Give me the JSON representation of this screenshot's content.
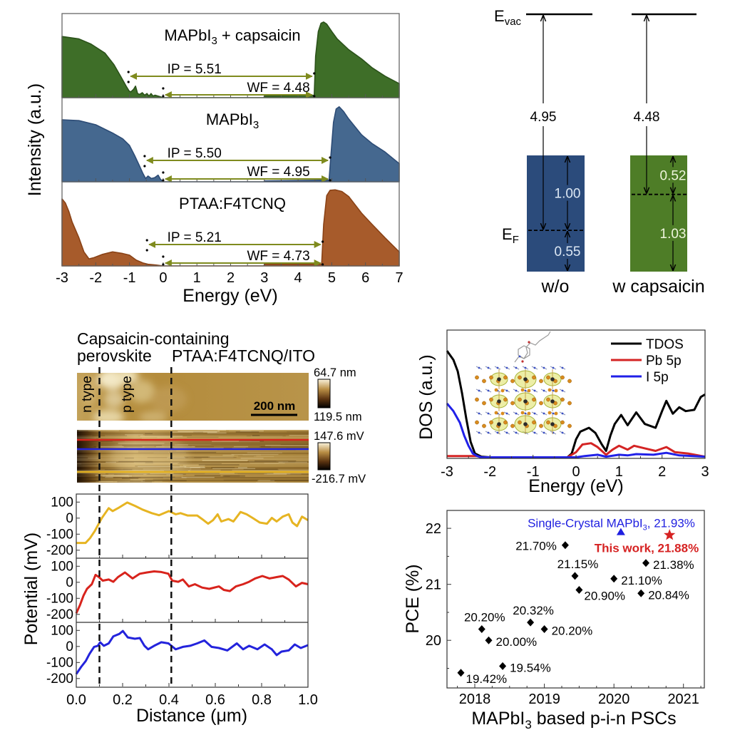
{
  "chart_data": [
    {
      "id": "ups-spectra",
      "type": "area",
      "title": "",
      "xlabel": "Energy (eV)",
      "ylabel": "Intensity (a.u.)",
      "xlim": [
        -3,
        7
      ],
      "ylim": [
        0,
        1
      ],
      "xticks": [
        "-3",
        "-2",
        "-1",
        "0",
        "1",
        "2",
        "3",
        "4",
        "5",
        "6",
        "7"
      ],
      "grid": false,
      "annotation_color": "#7f8b1e",
      "panels": [
        {
          "label": {
            "main": "MAPbI",
            "sub": "3",
            "suffix": " + capsaicin"
          },
          "fill": "#3e6e28",
          "edge": "#2b521a",
          "x": [
            -3,
            -2.5,
            -2.15,
            -1.73,
            -1.46,
            -1.25,
            -1.1,
            -1.01,
            -0.96,
            -0.88,
            -0.82,
            -0.76,
            -0.7,
            -0.62,
            -0.55,
            -0.48,
            -0.42,
            -0.36,
            -0.3,
            -0.24,
            -0.16,
            -0.08,
            0,
            2.99,
            3.0,
            4.48,
            4.52,
            4.6,
            4.68,
            4.76,
            4.85,
            5.0,
            5.16,
            5.5,
            5.88,
            6.2,
            6.58,
            7
          ],
          "y": [
            0.74,
            0.71,
            0.65,
            0.54,
            0.4,
            0.25,
            0.14,
            0.08,
            0.07,
            0.1,
            0.14,
            0.05,
            0.04,
            0.06,
            0.03,
            0.05,
            0.02,
            0.05,
            0.02,
            0.03,
            0.02,
            0.01,
            0,
            0,
            0.02,
            0.03,
            0.5,
            0.8,
            0.9,
            0.915,
            0.89,
            0.8,
            0.71,
            0.58,
            0.47,
            0.36,
            0.26,
            0.17
          ],
          "ip": {
            "text": "IP = 5.51",
            "value": 5.51,
            "from": -1.03,
            "to": 4.48
          },
          "wf": {
            "text": "WF = 4.48",
            "value": 4.48,
            "from": 0,
            "to": 4.48
          }
        },
        {
          "label": {
            "main": "MAPbI",
            "sub": "3",
            "suffix": ""
          },
          "fill": "#45688f",
          "edge": "#2d4c76",
          "x": [
            -3,
            -2.5,
            -2,
            -1.5,
            -1.2,
            -1,
            -0.85,
            -0.7,
            -0.6,
            -0.52,
            -0.45,
            -0.35,
            -0.25,
            -0.15,
            -0.08,
            0,
            2.99,
            3.0,
            4.92,
            4.97,
            5.05,
            5.13,
            5.22,
            5.35,
            5.5,
            5.88,
            6.2,
            6.58,
            7
          ],
          "y": [
            0.75,
            0.74,
            0.69,
            0.59,
            0.52,
            0.44,
            0.32,
            0.19,
            0.1,
            0.04,
            0.07,
            0.04,
            0.05,
            0.08,
            0.03,
            0,
            0,
            0.01,
            0.02,
            0.3,
            0.72,
            0.88,
            0.907,
            0.85,
            0.76,
            0.57,
            0.46,
            0.36,
            0.22
          ],
          "ip": {
            "text": "IP = 5.50",
            "value": 5.5,
            "from": -0.55,
            "to": 4.95
          },
          "wf": {
            "text": "WF = 4.95",
            "value": 4.95,
            "from": 0,
            "to": 4.95
          }
        },
        {
          "label": {
            "main": "PTAA:F4TCNQ",
            "sub": "",
            "suffix": ""
          },
          "fill": "#a75b2b",
          "edge": "#8a4216",
          "x": [
            -3,
            -2.9,
            -2.8,
            -2.7,
            -2.5,
            -2.35,
            -2.2,
            -2.05,
            -1.8,
            -1.5,
            -1.2,
            -1,
            -0.8,
            -0.6,
            -0.45,
            -0.2,
            0,
            2.99,
            3.0,
            4.7,
            4.76,
            4.85,
            4.95,
            5.1,
            5.3,
            5.5,
            5.88,
            6.2,
            6.58,
            7
          ],
          "y": [
            0.81,
            0.76,
            0.66,
            0.53,
            0.34,
            0.17,
            0.085,
            0.1,
            0.14,
            0.17,
            0.15,
            0.13,
            0.07,
            0.035,
            0.02,
            0.01,
            0,
            0,
            0.02,
            0.02,
            0.5,
            0.85,
            0.915,
            0.92,
            0.9,
            0.84,
            0.64,
            0.5,
            0.34,
            0.17
          ],
          "ip": {
            "text": "IP = 5.21",
            "value": 5.21,
            "from": -0.48,
            "to": 4.73
          },
          "wf": {
            "text": "WF = 4.73",
            "value": 4.73,
            "from": 0,
            "to": 4.73
          }
        }
      ]
    },
    {
      "id": "energy-level-diagram",
      "type": "diagram",
      "evac_label": {
        "main": "E",
        "sub": "vac"
      },
      "ef_label": {
        "main": "E",
        "sub": "F"
      },
      "columns": [
        {
          "label": "w/o",
          "fill": "#2b4b7b",
          "text_color": "#dce7f3",
          "work_function": {
            "text": "4.95",
            "value": 4.95
          },
          "upper": {
            "text": "1.00",
            "value": 1.0
          },
          "lower": {
            "text": "0.55",
            "value": 0.55
          }
        },
        {
          "label": "w capsaicin",
          "fill": "#4e7d27",
          "text_color": "#eef5dc",
          "work_function": {
            "text": "4.48",
            "value": 4.48
          },
          "upper": {
            "text": "0.52",
            "value": 0.52
          },
          "lower": {
            "text": "1.03",
            "value": 1.03
          }
        }
      ]
    },
    {
      "id": "kpfm-line-profiles",
      "type": "line",
      "title": "",
      "xlabel": "Distance (μm)",
      "ylabel": "Potential (mV)",
      "xlim": [
        0,
        1
      ],
      "ylim": [
        -250,
        150
      ],
      "xticks": [
        "0.0",
        "0.2",
        "0.4",
        "0.6",
        "0.8",
        "1.0"
      ],
      "yticks": [
        "100",
        "0",
        "-100",
        "-200"
      ],
      "grid": false,
      "boundaries": [
        0.1,
        0.41
      ],
      "series": [
        {
          "key": "yellow",
          "color": "#e6b422",
          "x": [
            0,
            0.04,
            0.06,
            0.08,
            0.1,
            0.11,
            0.14,
            0.157,
            0.185,
            0.22,
            0.255,
            0.286,
            0.326,
            0.357,
            0.4,
            0.429,
            0.45,
            0.48,
            0.522,
            0.543,
            0.569,
            0.59,
            0.61,
            0.626,
            0.657,
            0.678,
            0.709,
            0.735,
            0.761,
            0.792,
            0.823,
            0.844,
            0.865,
            0.891,
            0.917,
            0.933,
            0.953,
            0.974,
            1.0
          ],
          "y": [
            -155,
            -155,
            -124,
            -80,
            -27,
            0,
            62,
            44,
            66,
            97,
            75,
            53,
            31,
            18,
            44,
            24,
            31,
            16,
            16,
            -6,
            -35,
            -13,
            24,
            -21,
            -6,
            -21,
            38,
            24,
            1,
            -28,
            -35,
            1,
            -21,
            9,
            24,
            -28,
            -50,
            9,
            -13
          ]
        },
        {
          "key": "red",
          "color": "#d8231c",
          "x": [
            0,
            0.016,
            0.031,
            0.046,
            0.067,
            0.083,
            0.098,
            0.114,
            0.14,
            0.16,
            0.18,
            0.21,
            0.243,
            0.274,
            0.305,
            0.336,
            0.367,
            0.398,
            0.414,
            0.44,
            0.46,
            0.486,
            0.512,
            0.543,
            0.574,
            0.616,
            0.637,
            0.663,
            0.689,
            0.72,
            0.746,
            0.772,
            0.803,
            0.834,
            0.865,
            0.891,
            0.917,
            0.948,
            0.974,
            1.0
          ],
          "y": [
            -193,
            -142,
            -84,
            -41,
            -12,
            46,
            32,
            10,
            17,
            3,
            32,
            61,
            24,
            53,
            61,
            68,
            64,
            53,
            10,
            3,
            17,
            -26,
            -12,
            -33,
            -41,
            -26,
            -48,
            -55,
            -26,
            -12,
            3,
            24,
            39,
            24,
            32,
            39,
            17,
            -26,
            -4,
            -12
          ]
        },
        {
          "key": "blue",
          "color": "#2323dc",
          "x": [
            0,
            0.021,
            0.041,
            0.057,
            0.077,
            0.093,
            0.103,
            0.119,
            0.14,
            0.16,
            0.186,
            0.201,
            0.222,
            0.253,
            0.274,
            0.294,
            0.31,
            0.336,
            0.367,
            0.398,
            0.429,
            0.46,
            0.491,
            0.522,
            0.553,
            0.584,
            0.616,
            0.652,
            0.693,
            0.72,
            0.746,
            0.782,
            0.813,
            0.844,
            0.865,
            0.886,
            0.917,
            0.943,
            0.969,
            1.0
          ],
          "y": [
            -172,
            -128,
            -91,
            -47,
            -3,
            4,
            26,
            4,
            19,
            63,
            78,
            96,
            56,
            48,
            52,
            4,
            -18,
            4,
            26,
            19,
            -18,
            -3,
            4,
            19,
            37,
            -3,
            -10,
            -25,
            19,
            -18,
            4,
            -18,
            12,
            -18,
            -54,
            -32,
            -25,
            12,
            -10,
            8
          ]
        }
      ]
    },
    {
      "id": "dos",
      "type": "line",
      "title": "",
      "xlabel": "Energy (eV)",
      "ylabel": "DOS (a.u.)",
      "xlim": [
        -3,
        3
      ],
      "ylim": [
        0,
        100
      ],
      "xticks": [
        "-3",
        "-2",
        "-1",
        "0",
        "1",
        "2",
        "3"
      ],
      "grid": false,
      "legend": "top-right",
      "series": [
        {
          "name": "TDOS",
          "color": "#000000",
          "x": [
            -3,
            -2.85,
            -2.75,
            -2.65,
            -2.55,
            -2.45,
            -2.35,
            -2.2,
            -2,
            -0.2,
            -0.1,
            0,
            0.1,
            0.3,
            0.45,
            0.6,
            0.7,
            0.8,
            0.9,
            1.05,
            1.2,
            1.4,
            1.6,
            1.85,
            2.0,
            2.1,
            2.25,
            2.4,
            2.55,
            2.75,
            2.9,
            3.0
          ],
          "y": [
            83,
            76,
            67,
            50,
            30,
            12,
            3,
            0.5,
            0,
            0,
            3,
            14,
            20,
            23,
            19,
            10,
            5,
            17,
            26,
            33,
            25,
            35,
            26,
            23,
            36,
            44,
            34,
            39,
            36,
            37,
            47,
            49
          ]
        },
        {
          "name": "Pb 5p",
          "color": "#d42424",
          "x": [
            -3,
            -2.3,
            -2.2,
            -0.2,
            0,
            0.15,
            0.35,
            0.5,
            0.7,
            0.85,
            1.0,
            1.2,
            1.35,
            1.6,
            1.85,
            2.1,
            2.3,
            2.6,
            3
          ],
          "y": [
            1,
            1,
            0,
            0,
            4,
            10,
            11,
            8,
            2,
            6,
            9,
            6,
            9,
            7,
            5,
            8,
            4,
            3,
            0.5
          ]
        },
        {
          "name": "I 5p",
          "color": "#2020e8",
          "x": [
            -3,
            -2.85,
            -2.7,
            -2.6,
            -2.5,
            -2.4,
            -2.3,
            -2.2,
            0,
            0.2,
            0.5,
            0.7,
            1.0,
            1.2,
            1.4,
            1.8,
            2.1,
            2.4,
            3
          ],
          "y": [
            42,
            36,
            27,
            17,
            9,
            3,
            1,
            0,
            0,
            1,
            2,
            0.5,
            2,
            1.5,
            2.5,
            2,
            3.5,
            1.5,
            0.5
          ]
        }
      ]
    },
    {
      "id": "pce-comparison",
      "type": "scatter",
      "title": "",
      "xlabel": {
        "main": "MAPbI",
        "sub": "3",
        "suffix": " based p-i-n PSCs"
      },
      "ylabel": "PCE (%)",
      "xlim": [
        2017.6,
        2021.3
      ],
      "ylim": [
        19.15,
        22.32
      ],
      "xticks": [
        "2018",
        "2019",
        "2020",
        "2021"
      ],
      "yticks": [
        "20",
        "21",
        "22"
      ],
      "grid": false,
      "series": [
        {
          "key": "reported",
          "marker": "diamond",
          "color": "#000000",
          "points": [
            {
              "x": 2017.8,
              "y": 19.42,
              "label": "19.42%",
              "label_side": "below-right"
            },
            {
              "x": 2018.1,
              "y": 20.2,
              "label": "20.20%",
              "label_side": "above"
            },
            {
              "x": 2018.2,
              "y": 20.0,
              "label": "20.00%",
              "label_side": "right"
            },
            {
              "x": 2018.4,
              "y": 19.54,
              "label": "19.54%",
              "label_side": "right"
            },
            {
              "x": 2018.8,
              "y": 20.32,
              "label": "20.32%",
              "label_side": "above"
            },
            {
              "x": 2019.0,
              "y": 20.2,
              "label": "20.20%",
              "label_side": "right"
            },
            {
              "x": 2019.3,
              "y": 21.7,
              "label": "21.70%",
              "label_side": "left"
            },
            {
              "x": 2019.44,
              "y": 21.15,
              "label": "21.15%",
              "label_side": "above"
            },
            {
              "x": 2019.5,
              "y": 20.9,
              "label": "20.90%",
              "label_side": "below-right"
            },
            {
              "x": 2020.0,
              "y": 21.1,
              "label": "21.10%",
              "label_side": "right"
            },
            {
              "x": 2020.39,
              "y": 20.84,
              "label": "20.84%",
              "label_side": "right"
            },
            {
              "x": 2020.46,
              "y": 21.38,
              "label": "21.38%",
              "label_side": "right"
            }
          ]
        },
        {
          "key": "single-crystal",
          "marker": "triangle",
          "color": "#1f1fe0",
          "points": [
            {
              "x": 2020.1,
              "y": 21.93,
              "label": {
                "main": "Single-Crystal MAPbI",
                "sub": "3",
                "suffix": ", 21.93%"
              },
              "label_side": "above-left"
            }
          ]
        },
        {
          "key": "this-work",
          "marker": "star",
          "color": "#d62222",
          "points": [
            {
              "x": 2020.8,
              "y": 21.88,
              "label": "This work, 21.88%",
              "label_side": "below-left",
              "bold": true
            }
          ]
        }
      ]
    }
  ],
  "afm": {
    "heading_line1": "Capsaicin-containing",
    "heading_left": "perovskite",
    "heading_right": "PTAA:F4TCNQ/ITO",
    "n_label": "n type",
    "p_label": "p type",
    "scale_bar": "200 nm",
    "topography_colorbar": {
      "top": "64.7 nm",
      "bottom": "119.5 nm"
    },
    "potential_colorbar": {
      "top": "147.6 mV",
      "bottom": "-216.7 mV"
    }
  }
}
